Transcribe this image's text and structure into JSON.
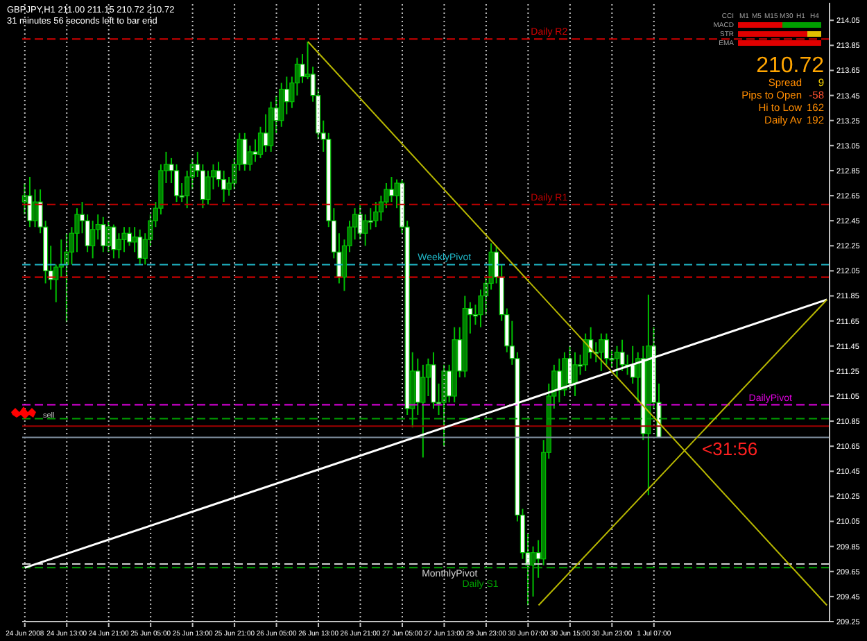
{
  "chart_data": {
    "type": "candlestick",
    "title": "GBPJPY,H1 211.00 211.15 210.72 210.72",
    "subtitle": "31 minutes 56 seconds left to bar end",
    "categories": [
      "24 Jun 2008",
      null,
      null,
      null,
      null,
      null,
      null,
      null,
      "24 Jun 13:00",
      null,
      null,
      null,
      null,
      null,
      null,
      null,
      "24 Jun 21:00",
      null,
      null,
      null,
      null,
      null,
      null,
      null,
      "25 Jun 05:00",
      null,
      null,
      null,
      null,
      null,
      null,
      null,
      "25 Jun 13:00",
      null,
      null,
      null,
      null,
      null,
      null,
      null,
      "25 Jun 21:00",
      null,
      null,
      null,
      null,
      null,
      null,
      null,
      "26 Jun 05:00",
      null,
      null,
      null,
      null,
      null,
      null,
      null,
      "26 Jun 13:00",
      null,
      null,
      null,
      null,
      null,
      null,
      null,
      "26 Jun 21:00",
      null,
      null,
      null,
      null,
      null,
      null,
      null,
      "27 Jun 05:00",
      null,
      null,
      null,
      null,
      null,
      null,
      null,
      "27 Jun 13:00",
      null,
      null,
      null,
      null,
      null,
      null,
      null,
      "29 Jun 23:00",
      null,
      null,
      null,
      null,
      null,
      null,
      null,
      "30 Jun 07:00",
      null,
      null,
      null,
      null,
      null,
      null,
      null,
      "30 Jun 15:00",
      null,
      null,
      null,
      null,
      null,
      null,
      null,
      "30 Jun 23:00",
      null,
      null,
      null,
      null,
      null,
      null,
      null,
      "1 Jul 07:00",
      null,
      null,
      null,
      null,
      null,
      null,
      null,
      null,
      null,
      null,
      null,
      null,
      null,
      null,
      null,
      null,
      null,
      null,
      null,
      null,
      null,
      null,
      null,
      null,
      null,
      null,
      null,
      null,
      null,
      null,
      null,
      null,
      null
    ],
    "ohlc": [
      [
        212.6,
        212.75,
        212.5,
        212.65
      ],
      [
        212.65,
        212.8,
        212.4,
        212.45
      ],
      [
        212.45,
        212.7,
        212.4,
        212.6
      ],
      [
        212.6,
        212.7,
        212.35,
        212.4
      ],
      [
        212.4,
        212.45,
        211.95,
        212.05
      ],
      [
        212.05,
        212.25,
        211.9,
        211.98
      ],
      [
        211.98,
        212.1,
        211.8,
        212.08
      ],
      [
        212.08,
        212.3,
        212.0,
        212.1
      ],
      [
        212.1,
        212.35,
        211.64,
        212.2
      ],
      [
        212.2,
        212.4,
        212.1,
        212.35
      ],
      [
        212.35,
        212.55,
        212.2,
        212.5
      ],
      [
        212.5,
        212.6,
        212.35,
        212.45
      ],
      [
        212.45,
        212.5,
        212.2,
        212.25
      ],
      [
        212.25,
        212.45,
        212.15,
        212.38
      ],
      [
        212.38,
        212.5,
        212.3,
        212.42
      ],
      [
        212.42,
        212.48,
        212.2,
        212.25
      ],
      [
        212.25,
        212.45,
        212.2,
        212.4
      ],
      [
        212.4,
        212.42,
        212.15,
        212.22
      ],
      [
        212.22,
        212.35,
        212.15,
        212.3
      ],
      [
        212.3,
        212.4,
        212.2,
        212.35
      ],
      [
        212.35,
        212.4,
        212.25,
        212.28
      ],
      [
        212.28,
        212.4,
        212.2,
        212.32
      ],
      [
        212.32,
        212.38,
        212.1,
        212.15
      ],
      [
        212.15,
        212.35,
        212.1,
        212.3
      ],
      [
        212.3,
        212.5,
        212.25,
        212.45
      ],
      [
        212.45,
        212.6,
        212.4,
        212.55
      ],
      [
        212.55,
        212.9,
        212.5,
        212.85
      ],
      [
        212.85,
        213.0,
        212.75,
        212.9
      ],
      [
        212.9,
        212.95,
        212.75,
        212.85
      ],
      [
        212.85,
        212.9,
        212.6,
        212.65
      ],
      [
        212.65,
        212.75,
        212.6,
        212.65
      ],
      [
        212.65,
        212.85,
        212.55,
        212.8
      ],
      [
        212.8,
        212.95,
        212.7,
        212.9
      ],
      [
        212.9,
        213.0,
        212.8,
        212.85
      ],
      [
        212.85,
        212.9,
        212.55,
        212.62
      ],
      [
        212.62,
        212.85,
        212.58,
        212.8
      ],
      [
        212.8,
        212.9,
        212.7,
        212.85
      ],
      [
        212.85,
        212.92,
        212.72,
        212.78
      ],
      [
        212.78,
        212.85,
        212.6,
        212.7
      ],
      [
        212.7,
        212.8,
        212.65,
        212.75
      ],
      [
        212.75,
        212.95,
        212.7,
        212.9
      ],
      [
        212.9,
        213.15,
        212.85,
        213.1
      ],
      [
        213.1,
        213.15,
        212.85,
        212.9
      ],
      [
        212.9,
        213.05,
        212.85,
        213.0
      ],
      [
        213.0,
        213.1,
        212.92,
        212.98
      ],
      [
        212.98,
        213.2,
        212.95,
        213.15
      ],
      [
        213.15,
        213.3,
        213.0,
        213.05
      ],
      [
        213.05,
        213.4,
        213.0,
        213.35
      ],
      [
        213.35,
        213.45,
        213.15,
        213.25
      ],
      [
        213.25,
        213.55,
        213.2,
        213.5
      ],
      [
        213.5,
        213.6,
        213.3,
        213.4
      ],
      [
        213.4,
        213.6,
        213.35,
        213.55
      ],
      [
        213.55,
        213.75,
        213.45,
        213.7
      ],
      [
        213.7,
        213.78,
        213.55,
        213.6
      ],
      [
        213.6,
        213.88,
        213.58,
        213.62
      ],
      [
        213.62,
        213.68,
        213.4,
        213.45
      ],
      [
        213.45,
        213.5,
        213.1,
        213.15
      ],
      [
        213.15,
        213.25,
        213.0,
        213.1
      ],
      [
        213.1,
        213.15,
        212.4,
        212.45
      ],
      [
        212.45,
        212.55,
        212.15,
        212.2
      ],
      [
        212.2,
        212.35,
        211.95,
        212.0
      ],
      [
        212.0,
        212.3,
        211.89,
        212.25
      ],
      [
        212.25,
        212.45,
        212.2,
        212.4
      ],
      [
        212.4,
        212.55,
        212.3,
        212.5
      ],
      [
        212.5,
        212.58,
        212.3,
        212.35
      ],
      [
        212.35,
        212.5,
        212.25,
        212.45
      ],
      [
        212.45,
        212.55,
        212.38,
        212.45
      ],
      [
        212.45,
        212.6,
        212.4,
        212.52
      ],
      [
        212.52,
        212.65,
        212.45,
        212.6
      ],
      [
        212.6,
        212.75,
        212.55,
        212.7
      ],
      [
        212.7,
        212.8,
        212.6,
        212.65
      ],
      [
        212.65,
        212.78,
        212.55,
        212.75
      ],
      [
        212.75,
        212.78,
        212.35,
        212.4
      ],
      [
        212.4,
        212.45,
        210.9,
        210.95
      ],
      [
        210.95,
        211.4,
        210.8,
        211.25
      ],
      [
        211.25,
        211.35,
        210.9,
        211.0
      ],
      [
        211.0,
        211.3,
        210.56,
        211.2
      ],
      [
        211.2,
        211.35,
        211.05,
        211.3
      ],
      [
        211.3,
        211.4,
        210.95,
        211.0
      ],
      [
        211.0,
        211.15,
        210.9,
        211.0
      ],
      [
        211.0,
        211.3,
        210.65,
        211.25
      ],
      [
        211.25,
        211.3,
        211.0,
        211.05
      ],
      [
        211.05,
        211.6,
        211.0,
        211.5
      ],
      [
        211.5,
        211.6,
        211.2,
        211.25
      ],
      [
        211.25,
        211.85,
        211.2,
        211.75
      ],
      [
        211.75,
        211.8,
        211.55,
        211.7
      ],
      [
        211.7,
        211.78,
        211.62,
        211.7
      ],
      [
        211.7,
        211.9,
        211.6,
        211.85
      ],
      [
        211.85,
        212.0,
        211.7,
        211.95
      ],
      [
        211.95,
        212.27,
        211.9,
        212.2
      ],
      [
        212.2,
        212.25,
        211.95,
        212.0
      ],
      [
        212.0,
        212.1,
        211.65,
        211.7
      ],
      [
        211.7,
        211.75,
        211.4,
        211.45
      ],
      [
        211.45,
        211.65,
        211.3,
        211.35
      ],
      [
        211.35,
        211.4,
        210.05,
        210.1
      ],
      [
        210.1,
        210.15,
        209.75,
        209.8
      ],
      [
        209.8,
        209.95,
        209.38,
        209.7
      ],
      [
        209.7,
        209.85,
        209.45,
        209.8
      ],
      [
        209.8,
        209.9,
        209.6,
        209.75
      ],
      [
        209.75,
        210.7,
        209.7,
        210.6
      ],
      [
        210.6,
        211.15,
        210.55,
        211.05
      ],
      [
        211.05,
        211.3,
        210.95,
        211.25
      ],
      [
        211.25,
        211.35,
        211.0,
        211.1
      ],
      [
        211.1,
        211.4,
        211.05,
        211.35
      ],
      [
        211.35,
        211.45,
        211.1,
        211.15
      ],
      [
        211.15,
        211.4,
        211.05,
        211.3
      ],
      [
        211.3,
        211.38,
        211.22,
        211.3
      ],
      [
        211.3,
        211.55,
        211.25,
        211.5
      ],
      [
        211.5,
        211.6,
        211.35,
        211.4
      ],
      [
        211.4,
        211.48,
        211.32,
        211.4
      ],
      [
        211.4,
        211.55,
        211.25,
        211.5
      ],
      [
        211.5,
        211.55,
        211.3,
        211.35
      ],
      [
        211.35,
        211.42,
        211.28,
        211.35
      ],
      [
        211.35,
        211.45,
        211.2,
        211.4
      ],
      [
        211.4,
        211.5,
        211.25,
        211.3
      ],
      [
        211.3,
        211.38,
        211.22,
        211.3
      ],
      [
        211.3,
        211.45,
        211.15,
        211.2
      ],
      [
        211.2,
        211.4,
        211.0,
        211.35
      ],
      [
        211.35,
        211.45,
        210.7,
        210.75
      ],
      [
        210.75,
        211.86,
        210.26,
        211.45
      ],
      [
        211.45,
        211.6,
        210.95,
        211.0
      ],
      [
        211.0,
        211.15,
        210.72,
        210.72
      ],
      null,
      null,
      null,
      null,
      null,
      null,
      null,
      null,
      null,
      null,
      null,
      null,
      null,
      null,
      null,
      null,
      null,
      null,
      null,
      null,
      null,
      null,
      null,
      null,
      null,
      null,
      null,
      null,
      null,
      null,
      null,
      null
    ],
    "color": "#00c000",
    "colors": [
      "#008000",
      "#ffffff",
      "#008000",
      "#ffffff",
      "#ffffff",
      "#ffffff",
      "#008000",
      "#008000",
      "#008000",
      "#008000",
      "#008000",
      "#ffffff",
      "#ffffff",
      "#008000",
      "#008000",
      "#ffffff",
      "#008000",
      "#ffffff",
      "#008000",
      "#008000",
      "#ffffff",
      "#008000",
      "#ffffff",
      "#008000",
      "#008000",
      "#008000",
      "#008000",
      "#008000",
      "#ffffff",
      "#ffffff",
      "#ffffff",
      "#008000",
      "#008000",
      "#ffffff",
      "#ffffff",
      "#008000",
      "#008000",
      "#ffffff",
      "#ffffff",
      "#008000",
      "#008000",
      "#008000",
      "#ffffff",
      "#008000",
      "#ffffff",
      "#008000",
      "#ffffff",
      "#008000",
      "#ffffff",
      "#008000",
      "#ffffff",
      "#008000",
      "#008000",
      "#ffffff",
      "#008000",
      "#ffffff",
      "#ffffff",
      "#ffffff",
      "#ffffff",
      "#ffffff",
      "#ffffff",
      "#008000",
      "#008000",
      "#008000",
      "#ffffff",
      "#008000",
      "#ffffff",
      "#008000",
      "#008000",
      "#008000",
      "#ffffff",
      "#008000",
      "#ffffff",
      "#ffffff",
      "#008000",
      "#ffffff",
      "#008000",
      "#008000",
      "#ffffff",
      "#ffffff",
      "#008000",
      "#ffffff",
      "#008000",
      "#ffffff",
      "#008000",
      "#ffffff",
      "#ffffff",
      "#008000",
      "#008000",
      "#008000",
      "#ffffff",
      "#ffffff",
      "#ffffff",
      "#ffffff",
      "#ffffff",
      "#ffffff",
      "#ffffff",
      "#008000",
      "#ffffff",
      "#008000",
      "#008000",
      "#008000",
      "#ffffff",
      "#008000",
      "#ffffff",
      "#008000",
      "#ffffff",
      "#008000",
      "#ffffff",
      "#ffffff",
      "#008000",
      "#ffffff",
      "#ffffff",
      "#008000",
      "#ffffff",
      "#ffffff",
      "#ffffff",
      "#008000",
      "#ffffff",
      "#008000",
      "#ffffff",
      "#ffffff",
      null,
      null,
      null,
      null,
      null,
      null,
      null,
      null,
      null,
      null,
      null,
      null,
      null,
      null,
      null,
      null,
      null,
      null,
      null,
      null,
      null,
      null,
      null,
      null,
      null,
      null,
      null,
      null,
      null,
      null,
      null,
      null
    ],
    "series": [
      {
        "type": "line",
        "color": "#ffffff",
        "values": [
          209.68,
          null,
          null,
          null,
          null,
          null,
          null,
          null,
          null,
          null,
          null,
          null,
          null,
          null,
          null,
          null,
          null,
          null,
          null,
          null,
          null,
          null,
          null,
          null,
          null,
          null,
          null,
          null,
          null,
          null,
          null,
          null,
          null,
          null,
          null,
          null,
          null,
          null,
          null,
          null,
          null,
          null,
          null,
          null,
          null,
          null,
          null,
          null,
          null,
          null,
          null,
          null,
          null,
          null,
          null,
          null,
          null,
          null,
          null,
          null,
          null,
          null,
          null,
          null,
          null,
          null,
          null,
          null,
          null,
          null,
          null,
          null,
          null,
          null,
          null,
          null,
          null,
          null,
          null,
          null,
          null,
          null,
          null,
          null,
          null,
          null,
          null,
          null,
          null,
          null,
          null,
          null,
          null,
          null,
          null,
          null,
          null,
          null,
          null,
          null,
          null,
          null,
          null,
          null,
          null,
          null,
          null,
          null,
          null,
          null,
          null,
          null,
          null,
          null,
          null,
          null,
          null,
          null,
          null,
          null,
          null,
          null,
          null,
          null,
          null,
          null,
          null,
          null,
          null,
          null,
          null,
          null,
          null,
          null,
          null,
          null,
          null,
          null,
          null,
          null,
          null,
          null,
          null,
          null,
          null,
          null,
          null,
          null,
          null,
          null,
          null,
          null,
          null,
          211.82
        ]
      },
      {
        "type": "line",
        "color": "#b8b800",
        "values": [
          null,
          null,
          null,
          null,
          null,
          null,
          null,
          null,
          null,
          null,
          null,
          null,
          null,
          null,
          null,
          null,
          null,
          null,
          null,
          null,
          null,
          null,
          null,
          null,
          null,
          null,
          null,
          null,
          null,
          null,
          null,
          null,
          null,
          null,
          null,
          null,
          null,
          null,
          null,
          null,
          null,
          null,
          null,
          null,
          null,
          null,
          null,
          null,
          null,
          null,
          null,
          null,
          null,
          null,
          213.88,
          null,
          null,
          null,
          null,
          null,
          null,
          null,
          null,
          null,
          null,
          null,
          null,
          null,
          null,
          null,
          null,
          null,
          null,
          null,
          null,
          null,
          null,
          null,
          null,
          null,
          null,
          null,
          null,
          null,
          null,
          null,
          null,
          null,
          null,
          null,
          null,
          null,
          null,
          null,
          null,
          null,
          null,
          null,
          null,
          null,
          null,
          null,
          null,
          null,
          null,
          null,
          null,
          null,
          null,
          null,
          null,
          null,
          null,
          null,
          null,
          null,
          null,
          null,
          null,
          null,
          null,
          null,
          null,
          null,
          null,
          null,
          null,
          null,
          null,
          null,
          null,
          null,
          null,
          null,
          null,
          null,
          null,
          null,
          null,
          null,
          null,
          null,
          null,
          null,
          null,
          null,
          null,
          null,
          null,
          null,
          null,
          null,
          null,
          209.38
        ]
      },
      {
        "type": "line",
        "color": "#b8b800",
        "values": [
          null,
          null,
          null,
          null,
          null,
          null,
          null,
          null,
          null,
          null,
          null,
          null,
          null,
          null,
          null,
          null,
          null,
          null,
          null,
          null,
          null,
          null,
          null,
          null,
          null,
          null,
          null,
          null,
          null,
          null,
          null,
          null,
          null,
          null,
          null,
          null,
          null,
          null,
          null,
          null,
          null,
          null,
          null,
          null,
          null,
          null,
          null,
          null,
          null,
          null,
          null,
          null,
          null,
          null,
          null,
          null,
          null,
          null,
          null,
          null,
          null,
          null,
          null,
          null,
          null,
          null,
          null,
          null,
          null,
          null,
          null,
          null,
          null,
          null,
          null,
          null,
          null,
          null,
          null,
          null,
          null,
          null,
          null,
          null,
          null,
          null,
          null,
          null,
          null,
          null,
          null,
          null,
          null,
          null,
          null,
          null,
          null,
          null,
          209.38,
          null,
          null,
          null,
          null,
          null,
          null,
          null,
          null,
          null,
          null,
          null,
          null,
          null,
          null,
          null,
          null,
          null,
          null,
          null,
          null,
          null,
          null,
          null,
          null,
          null,
          null,
          null,
          null,
          null,
          null,
          null,
          null,
          null,
          null,
          null,
          null,
          null,
          null,
          null,
          null,
          null,
          null,
          null,
          null,
          null,
          null,
          null,
          null,
          null,
          null,
          null,
          null,
          null,
          null,
          211.82
        ]
      }
    ],
    "ylim": [
      209.25,
      214.19
    ],
    "yticks": [
      209.25,
      209.45,
      209.65,
      209.85,
      210.05,
      210.25,
      210.45,
      210.65,
      210.85,
      211.05,
      211.25,
      211.45,
      211.65,
      211.85,
      212.05,
      212.25,
      212.45,
      212.65,
      212.85,
      213.05,
      213.25,
      213.45,
      213.65,
      213.85,
      214.05
    ],
    "grid": "x",
    "ref_lines": [
      {
        "axis": "y",
        "value": 213.9,
        "label": "Daily R2",
        "color": "#d00000",
        "line_style": "dashed"
      },
      {
        "axis": "y",
        "value": 212.58,
        "label": "Daily R1",
        "color": "#c00000",
        "line_style": "dashed"
      },
      {
        "axis": "y",
        "value": 212.1,
        "label": "WeeklyPivot",
        "color": "#20b8c8",
        "line_style": "dashed"
      },
      {
        "axis": "y",
        "value": 212.0,
        "label": null,
        "color": "#e00000",
        "line_style": "dashed"
      },
      {
        "axis": "y",
        "value": 210.98,
        "label": "DailyPivot",
        "color": "#e000e0",
        "line_style": "dashed"
      },
      {
        "axis": "y",
        "value": 210.87,
        "label": null,
        "color": "#00a000",
        "line_style": "dashed"
      },
      {
        "axis": "y",
        "value": 210.81,
        "label": null,
        "color": "#a00000",
        "line_style": "solid"
      },
      {
        "axis": "y",
        "value": 210.72,
        "label": null,
        "color": "#8090a0",
        "line_style": "solid"
      },
      {
        "axis": "y",
        "value": 209.71,
        "label": "MonthlyPivot",
        "color": "#d0d0d0",
        "line_style": "dashed"
      },
      {
        "axis": "y",
        "value": 209.68,
        "label": "Daily S1",
        "color": "#00a000",
        "line_style": "dashed"
      }
    ],
    "annotations": [
      "<31:56",
      "sell",
      "CCI",
      "MACD",
      "STR",
      "EMA",
      "M1",
      "M5",
      "M15",
      "M30",
      "H1",
      "H4",
      "210.72",
      "Spread",
      "9",
      "Pips to Open",
      "-58",
      "Hi to Low",
      "162",
      "Daily Av",
      "192"
    ]
  }
}
